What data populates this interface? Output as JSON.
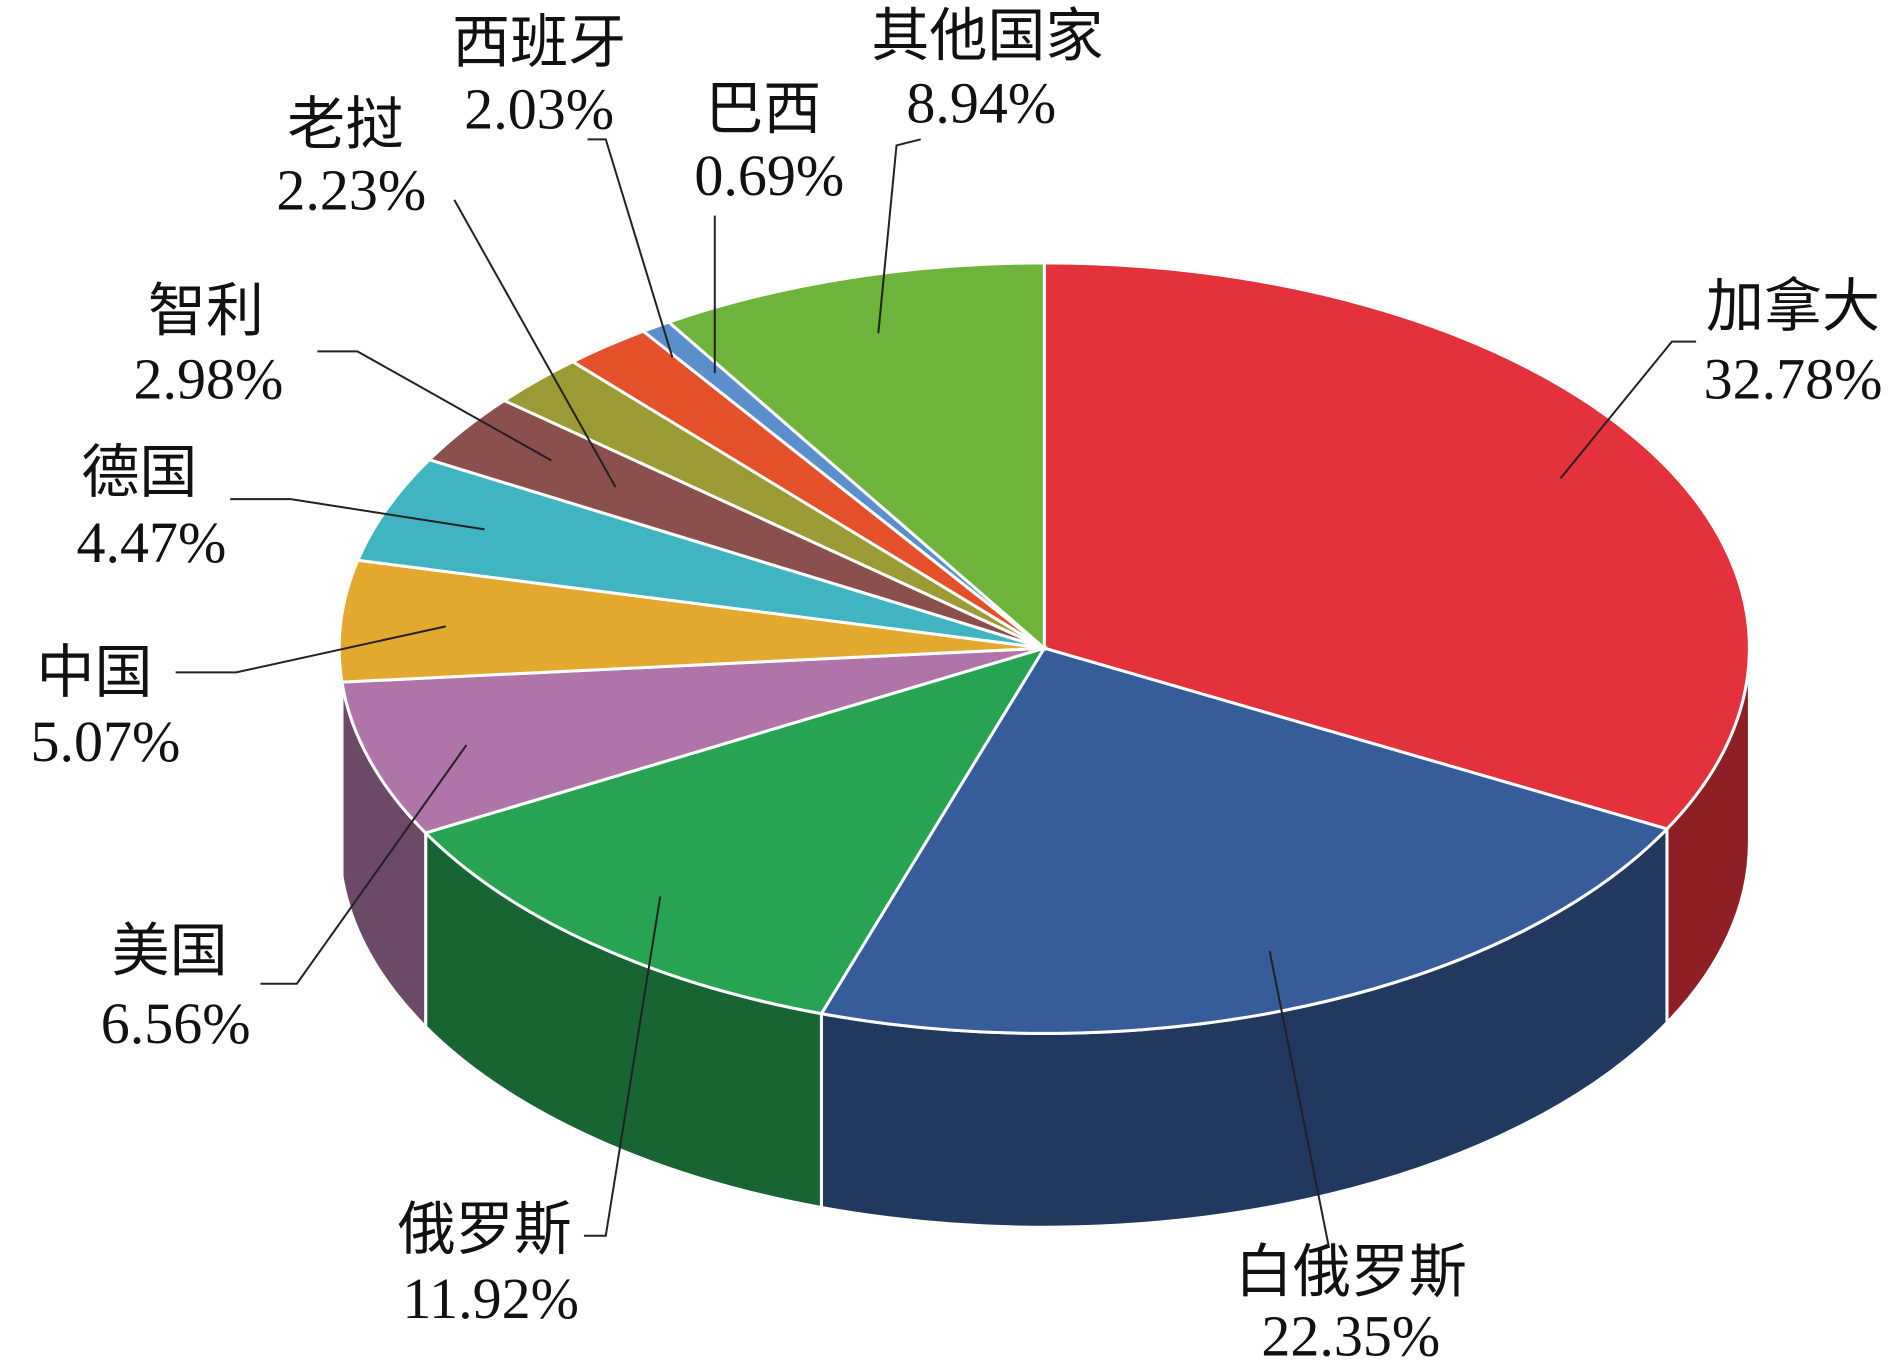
{
  "chart_data": {
    "type": "pie3d",
    "categories": [
      "加拿大",
      "白俄罗斯",
      "俄罗斯",
      "美国",
      "中国",
      "德国",
      "智利",
      "老挝",
      "西班牙",
      "巴西",
      "其他国家"
    ],
    "values": [
      32.78,
      22.35,
      11.92,
      6.56,
      5.07,
      4.47,
      2.98,
      2.23,
      2.03,
      0.69,
      8.94
    ],
    "value_labels": [
      "32.78%",
      "22.35%",
      "11.92%",
      "6.56%",
      "5.07%",
      "4.47%",
      "2.98%",
      "2.23%",
      "2.03%",
      "0.69%",
      "8.94%"
    ],
    "colors": [
      "#e4323c",
      "#365c9a",
      "#27a352",
      "#b075a8",
      "#e3a82e",
      "#41b4c1",
      "#8b4f4e",
      "#9b9a35",
      "#e4502a",
      "#5b8fcb",
      "#6db33c"
    ]
  }
}
